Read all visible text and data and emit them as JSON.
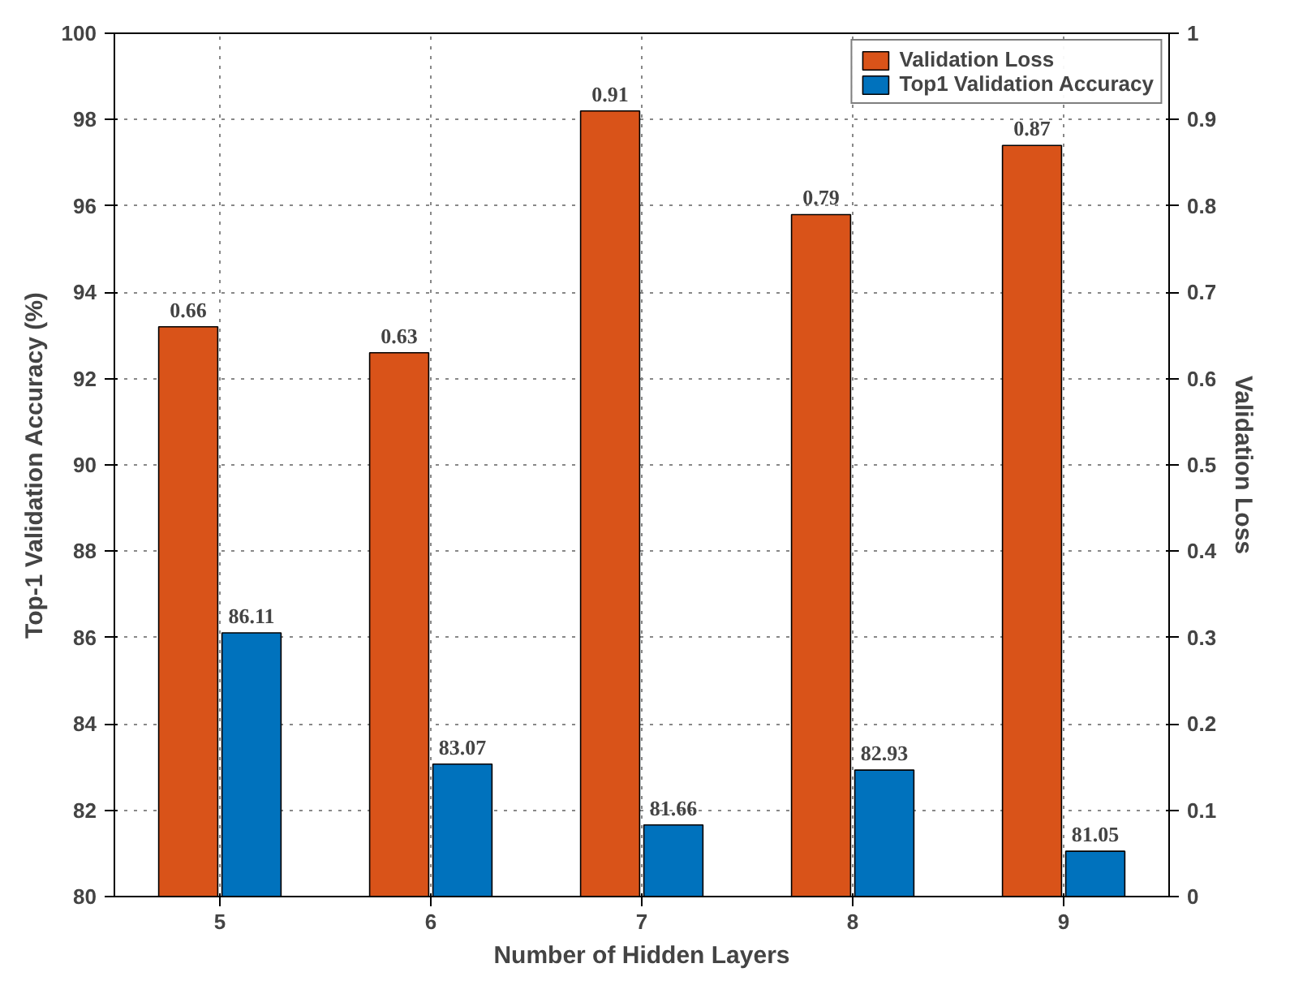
{
  "chart_data": {
    "type": "bar",
    "xlabel": "Number of Hidden Layers",
    "ylabel": "Top-1 Validation Accuracy (%)",
    "y2label": "Validation Loss",
    "categories": [
      "5",
      "6",
      "7",
      "8",
      "9"
    ],
    "series": [
      {
        "name": "Validation Loss",
        "color": "#d95319",
        "axis": "y2",
        "values": [
          0.66,
          0.63,
          0.91,
          0.79,
          0.87
        ]
      },
      {
        "name": "Top1 Validation Accuracy",
        "color": "#0072bd",
        "values": [
          86.11,
          83.07,
          81.66,
          82.93,
          81.05
        ]
      }
    ],
    "ylim": [
      80,
      100
    ],
    "yticks": [
      80,
      82,
      84,
      86,
      88,
      90,
      92,
      94,
      96,
      98,
      100
    ],
    "y2lim": [
      0,
      1
    ],
    "y2ticks": [
      0,
      0.1,
      0.2,
      0.3,
      0.4,
      0.5,
      0.6,
      0.7,
      0.8,
      0.9,
      1
    ],
    "data_labels": true,
    "grid": true,
    "legend": "top right"
  }
}
